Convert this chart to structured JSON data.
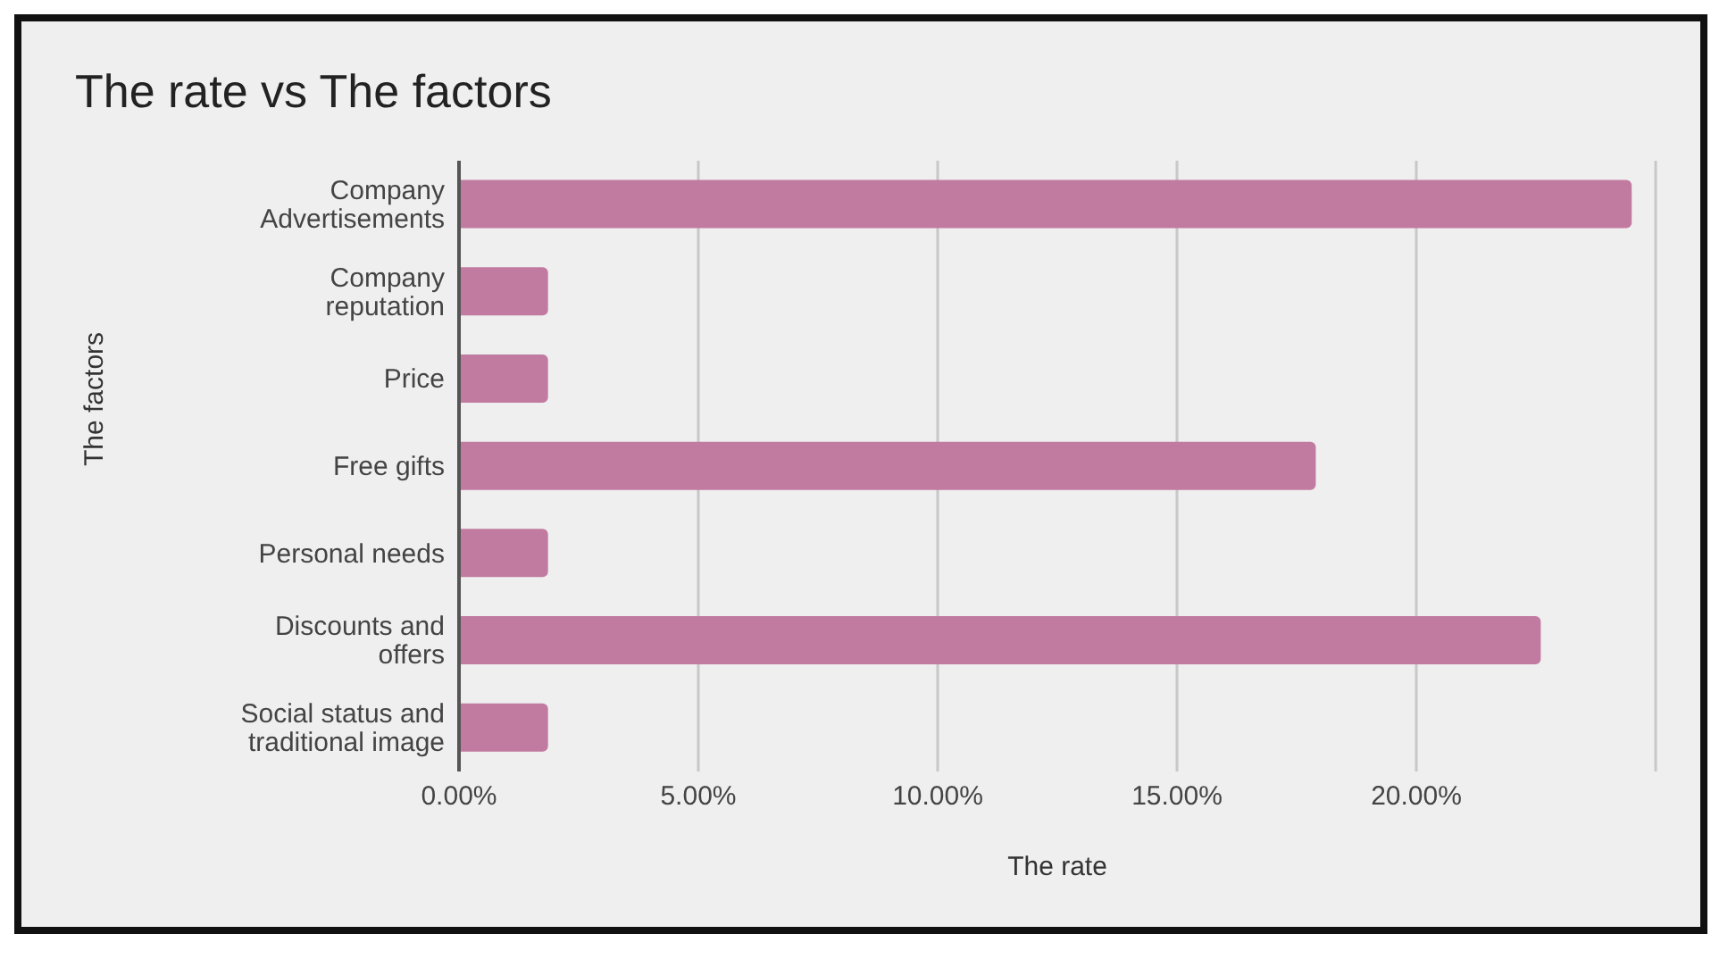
{
  "chart_data": {
    "type": "bar",
    "orientation": "horizontal",
    "title": "The rate vs The factors",
    "xlabel": "The rate",
    "ylabel": "The factors",
    "categories": [
      "Company Advertisements",
      "Company reputation",
      "Price",
      "Free gifts",
      "Personal needs",
      "Discounts and offers",
      "Social status and traditional image"
    ],
    "values": [
      24.5,
      1.86,
      1.86,
      17.9,
      1.86,
      22.6,
      1.86
    ],
    "color": "#c27ba0",
    "xlim": [
      0,
      25
    ],
    "xticks": [
      {
        "value": 0,
        "label": "0.00%"
      },
      {
        "value": 5,
        "label": "5.00%"
      },
      {
        "value": 10,
        "label": "10.00%"
      },
      {
        "value": 15,
        "label": "15.00%"
      },
      {
        "value": 20,
        "label": "20.00%"
      },
      {
        "value": 25,
        "label": null
      }
    ],
    "grid": "x"
  }
}
